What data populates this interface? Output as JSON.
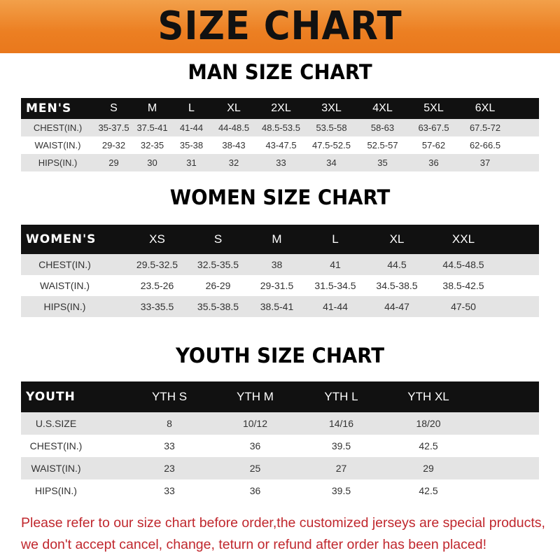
{
  "title": "SIZE CHART",
  "men": {
    "title": "MAN SIZE CHART",
    "header": "MEN'S",
    "sizes": [
      "S",
      "M",
      "L",
      "XL",
      "2XL",
      "3XL",
      "4XL",
      "5XL",
      "6XL"
    ],
    "rows": [
      {
        "label": "CHEST(IN.)",
        "values": [
          "35-37.5",
          "37.5-41",
          "41-44",
          "44-48.5",
          "48.5-53.5",
          "53.5-58",
          "58-63",
          "63-67.5",
          "67.5-72"
        ]
      },
      {
        "label": "WAIST(IN.)",
        "values": [
          "29-32",
          "32-35",
          "35-38",
          "38-43",
          "43-47.5",
          "47.5-52.5",
          "52.5-57",
          "57-62",
          "62-66.5"
        ]
      },
      {
        "label": "HIPS(IN.)",
        "values": [
          "29",
          "30",
          "31",
          "32",
          "33",
          "34",
          "35",
          "36",
          "37"
        ]
      }
    ]
  },
  "women": {
    "title": "WOMEN SIZE CHART",
    "header": "WOMEN'S",
    "sizes": [
      "XS",
      "S",
      "M",
      "L",
      "XL",
      "XXL"
    ],
    "rows": [
      {
        "label": "CHEST(IN.)",
        "values": [
          "29.5-32.5",
          "32.5-35.5",
          "38",
          "41",
          "44.5",
          "44.5-48.5"
        ]
      },
      {
        "label": "WAIST(IN.)",
        "values": [
          "23.5-26",
          "26-29",
          "29-31.5",
          "31.5-34.5",
          "34.5-38.5",
          "38.5-42.5"
        ]
      },
      {
        "label": "HIPS(IN.)",
        "values": [
          "33-35.5",
          "35.5-38.5",
          "38.5-41",
          "41-44",
          "44-47",
          "47-50"
        ]
      }
    ]
  },
  "youth": {
    "title": "YOUTH SIZE CHART",
    "header": "YOUTH",
    "sizes": [
      "YTH S",
      "YTH M",
      "YTH L",
      "YTH XL"
    ],
    "rows": [
      {
        "label": "U.S.SIZE",
        "values": [
          "8",
          "10/12",
          "14/16",
          "18/20"
        ]
      },
      {
        "label": "CHEST(IN.)",
        "values": [
          "33",
          "36",
          "39.5",
          "42.5"
        ]
      },
      {
        "label": "WAIST(IN.)",
        "values": [
          "23",
          "25",
          "27",
          "29"
        ]
      },
      {
        "label": "HIPS(IN.)",
        "values": [
          "33",
          "36",
          "39.5",
          "42.5"
        ]
      }
    ]
  },
  "notice": {
    "line1": "Please refer to our size chart before order,the customized jerseys are special products,",
    "line2": "we don't accept cancel, change, teturn or refund after order has been placed!"
  },
  "colors": {
    "banner": "#ec7f22",
    "header_row": "#111111",
    "stripe": "#e4e4e4",
    "notice": "#c0272d"
  }
}
